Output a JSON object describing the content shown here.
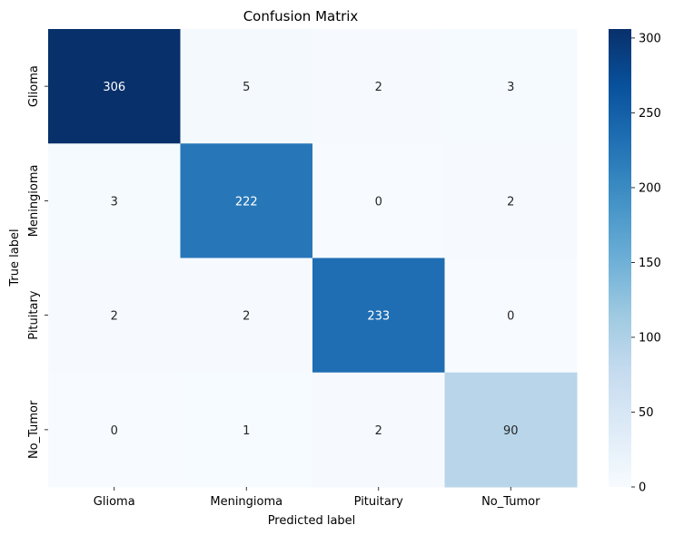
{
  "chart_data": {
    "type": "heatmap",
    "title": "Confusion Matrix",
    "xlabel": "Predicted label",
    "ylabel": "True label",
    "x_categories": [
      "Glioma",
      "Meningioma",
      "Pituitary",
      "No_Tumor"
    ],
    "y_categories": [
      "Glioma",
      "Meningioma",
      "Pituitary",
      "No_Tumor"
    ],
    "matrix": [
      [
        306,
        5,
        2,
        3
      ],
      [
        3,
        222,
        0,
        2
      ],
      [
        2,
        2,
        233,
        0
      ],
      [
        0,
        1,
        2,
        90
      ]
    ],
    "colormap": "Blues",
    "vmin": 0,
    "vmax": 306,
    "colorbar_ticks": [
      "0",
      "50",
      "100",
      "150",
      "200",
      "250",
      "300"
    ],
    "colorbar_tick_values": [
      0,
      50,
      100,
      150,
      200,
      250,
      300
    ],
    "annotation_colors": {
      "dark_bg": "#ffffff",
      "light_bg": "#262626"
    },
    "colormap_stops": [
      "#f7fbff",
      "#deebf7",
      "#c6dbef",
      "#9ecae1",
      "#6baed6",
      "#4292c6",
      "#2171b5",
      "#08519c",
      "#08306b"
    ]
  }
}
